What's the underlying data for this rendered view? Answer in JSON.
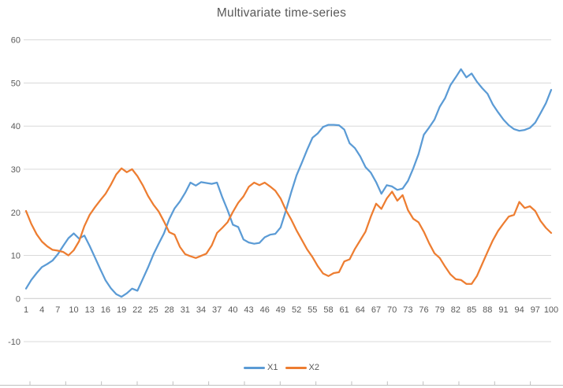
{
  "title": "Multivariate time-series",
  "legend": {
    "items": [
      {
        "label": "X1",
        "color": "#5B9BD5"
      },
      {
        "label": "X2",
        "color": "#ED7D31"
      }
    ]
  },
  "colors": {
    "gridline": "#D9D9D9",
    "zero_axis": "#C9C9C9",
    "tick_text": "#595959",
    "title_text": "#595959",
    "bottom_ruler": "#BFBFBF",
    "background": "#FFFFFF"
  },
  "chart_data": {
    "type": "line",
    "title": "Multivariate time-series",
    "xlabel": "",
    "ylabel": "",
    "x_start": 1,
    "x_end": 100,
    "x_tick_labels": [
      1,
      4,
      7,
      10,
      13,
      16,
      19,
      22,
      25,
      28,
      31,
      34,
      37,
      40,
      43,
      46,
      49,
      52,
      55,
      58,
      61,
      64,
      67,
      70,
      73,
      76,
      79,
      82,
      85,
      88,
      91,
      94,
      97,
      100
    ],
    "y_ticks": [
      60,
      50,
      40,
      30,
      20,
      10,
      0,
      -10
    ],
    "ylim": [
      -10,
      60
    ],
    "grid": true,
    "legend_position": "bottom",
    "series": [
      {
        "name": "X1",
        "color": "#5B9BD5",
        "values": [
          2.3,
          4.3,
          5.9,
          7.3,
          8.0,
          8.8,
          10.3,
          12.2,
          14.0,
          15.1,
          13.9,
          14.6,
          12.2,
          9.5,
          6.8,
          4.2,
          2.4,
          1.0,
          0.4,
          1.2,
          2.3,
          1.8,
          4.5,
          7.2,
          10.2,
          12.7,
          15.1,
          18.4,
          20.9,
          22.5,
          24.5,
          26.9,
          26.2,
          27.0,
          26.8,
          26.6,
          26.9,
          23.5,
          20.5,
          17.1,
          16.6,
          13.7,
          13.0,
          12.7,
          12.9,
          14.2,
          14.8,
          15.0,
          16.5,
          20.4,
          24.7,
          28.6,
          31.5,
          34.5,
          37.3,
          38.3,
          39.8,
          40.3,
          40.3,
          40.2,
          39.2,
          36.0,
          34.9,
          33.0,
          30.5,
          29.2,
          27.0,
          24.3,
          26.3,
          26.0,
          25.2,
          25.5,
          27.3,
          30.2,
          33.5,
          38.0,
          39.7,
          41.5,
          44.5,
          46.5,
          49.5,
          51.3,
          53.2,
          51.3,
          52.2,
          50.3,
          48.8,
          47.5,
          45.0,
          43.2,
          41.5,
          40.2,
          39.3,
          38.9,
          39.1,
          39.6,
          40.8,
          43.0,
          45.3,
          48.4
        ]
      },
      {
        "name": "X2",
        "color": "#ED7D31",
        "values": [
          20.3,
          17.3,
          14.9,
          13.2,
          12.1,
          11.3,
          11.1,
          10.8,
          10.0,
          11.2,
          13.3,
          16.8,
          19.4,
          21.2,
          22.8,
          24.3,
          26.4,
          28.8,
          30.2,
          29.3,
          30.0,
          28.4,
          26.3,
          23.8,
          21.8,
          20.2,
          17.9,
          15.4,
          14.8,
          12.0,
          10.3,
          9.8,
          9.4,
          9.9,
          10.4,
          12.3,
          15.2,
          16.4,
          17.7,
          20.1,
          22.2,
          23.7,
          25.9,
          26.9,
          26.3,
          26.9,
          26.0,
          25.0,
          23.2,
          20.5,
          18.3,
          15.8,
          13.6,
          11.4,
          9.6,
          7.5,
          5.8,
          5.2,
          5.9,
          6.1,
          8.6,
          9.1,
          11.5,
          13.5,
          15.5,
          19.0,
          22.0,
          20.8,
          23.2,
          24.8,
          22.7,
          24.0,
          20.5,
          18.5,
          17.7,
          15.5,
          12.8,
          10.5,
          9.4,
          7.4,
          5.6,
          4.5,
          4.3,
          3.4,
          3.4,
          5.2,
          8.0,
          10.8,
          13.5,
          15.7,
          17.4,
          19.0,
          19.4,
          22.4,
          21.0,
          21.4,
          20.3,
          18.0,
          16.4,
          15.2
        ]
      }
    ]
  }
}
